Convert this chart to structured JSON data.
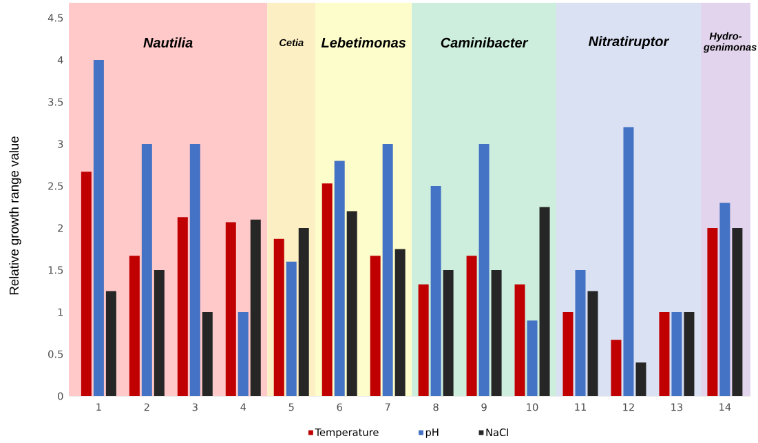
{
  "chart_data": {
    "type": "bar",
    "categories": [
      "1",
      "2",
      "3",
      "4",
      "5",
      "6",
      "7",
      "8",
      "9",
      "10",
      "11",
      "12",
      "13",
      "14"
    ],
    "series": [
      {
        "name": "Temperature",
        "color": "#c00000",
        "values": [
          2.67,
          1.67,
          2.13,
          2.07,
          1.87,
          2.53,
          1.67,
          1.33,
          1.67,
          1.33,
          1,
          0.67,
          1,
          2
        ]
      },
      {
        "name": "pH",
        "color": "#4472c4",
        "values": [
          4,
          3,
          3,
          1,
          1.6,
          2.8,
          3,
          2.5,
          3,
          0.9,
          1.5,
          3.2,
          1,
          2.3
        ]
      },
      {
        "name": "NaCl",
        "color": "#262626",
        "values": [
          1.25,
          1.5,
          1,
          2.1,
          2,
          2.2,
          1.75,
          1.5,
          1.5,
          2.25,
          1.25,
          0.4,
          1,
          2
        ]
      }
    ],
    "ylabel": "Relative growth range value",
    "ylim": [
      0,
      4.5
    ],
    "yticks": [
      0,
      0.5,
      1,
      1.5,
      2,
      2.5,
      3,
      3.5,
      4,
      4.5
    ],
    "bands": [
      {
        "axis": "x",
        "from": "1",
        "to": "4",
        "label": "Nautilia",
        "color": "#ffc9c9"
      },
      {
        "axis": "x",
        "from": "5",
        "to": "5",
        "label": "Cetia",
        "color": "#fdefc4"
      },
      {
        "axis": "x",
        "from": "6",
        "to": "7",
        "label": "Lebetimonas",
        "color": "#fdfccb"
      },
      {
        "axis": "x",
        "from": "8",
        "to": "10",
        "label": "Caminibacter",
        "color": "#cdeedd"
      },
      {
        "axis": "x",
        "from": "11",
        "to": "13",
        "label": "Nitratiruptor",
        "color": "#dae1f3"
      },
      {
        "axis": "x",
        "from": "14",
        "to": "14",
        "label": "Hydro-genimonas",
        "color": "#e2d4ec"
      }
    ],
    "legend": "bottom"
  }
}
